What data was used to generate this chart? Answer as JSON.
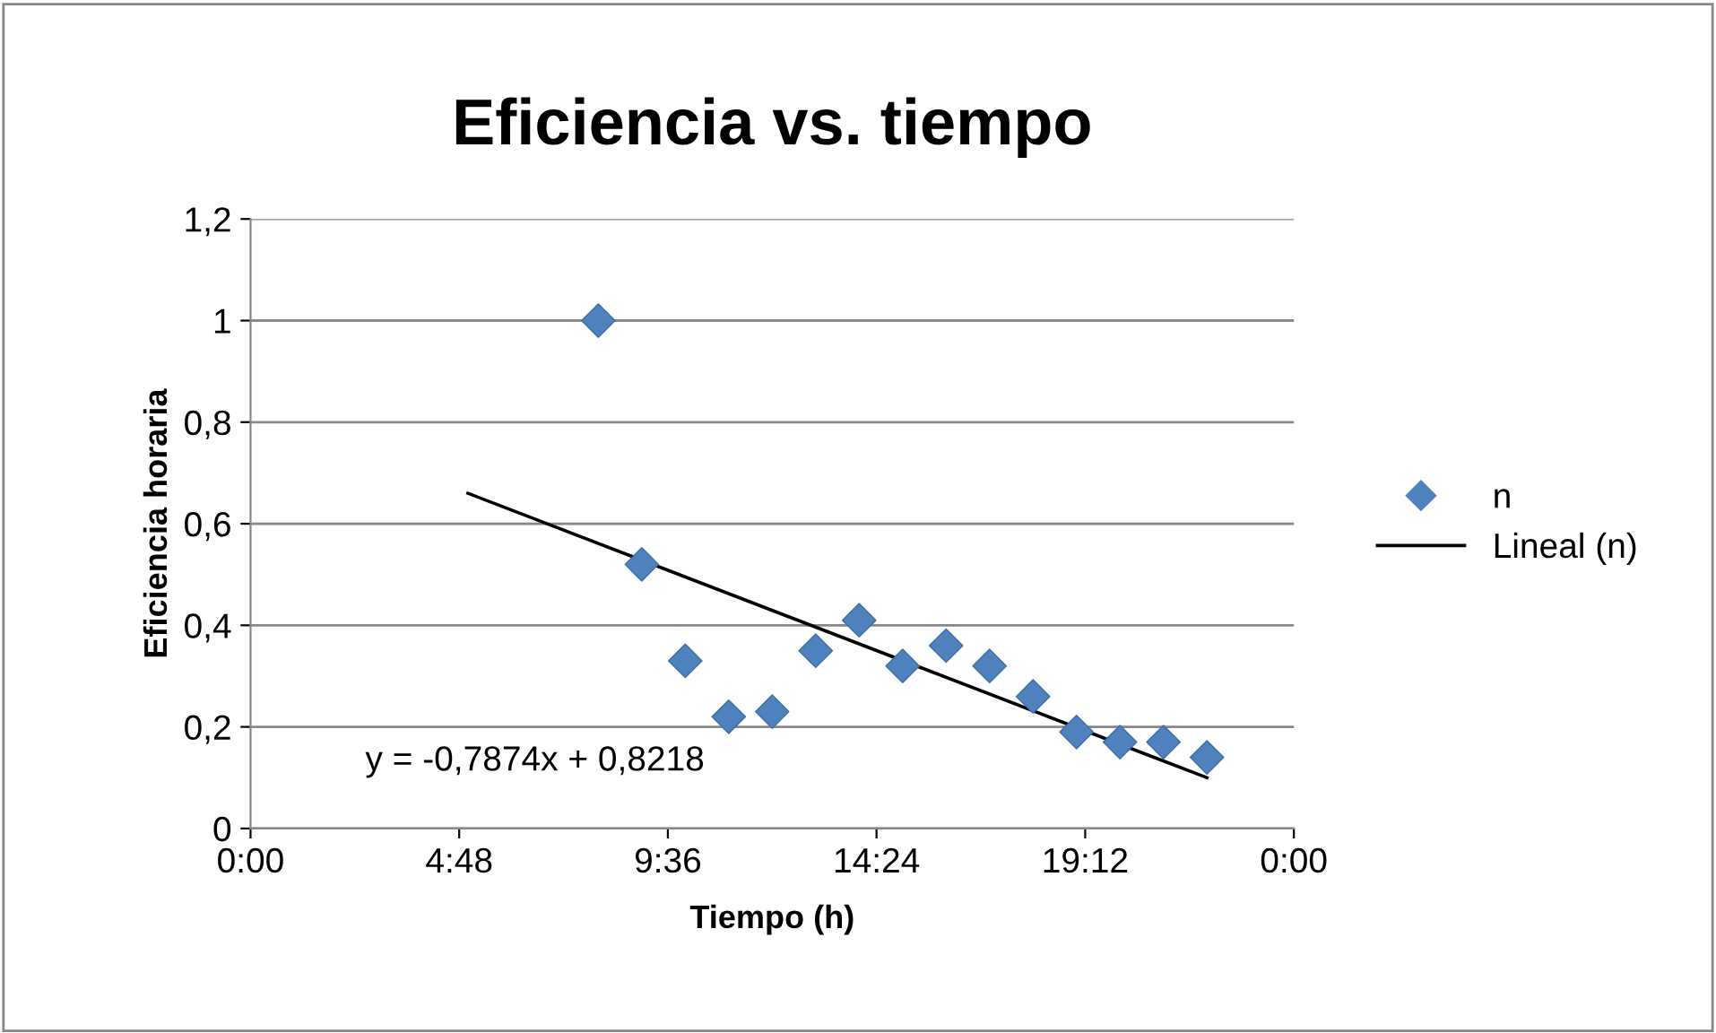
{
  "chart_data": {
    "type": "scatter",
    "title": "Eficiencia vs. tiempo",
    "xlabel": "Tiempo (h)",
    "ylabel": "Eficiencia horaria",
    "series": [
      {
        "name": "n",
        "marker": "diamond",
        "color": "#4f81bd",
        "x": [
          8,
          9,
          10,
          11,
          12,
          13,
          14,
          15,
          16,
          17,
          18,
          19,
          20,
          21,
          22
        ],
        "values": [
          1.0,
          0.52,
          0.33,
          0.22,
          0.23,
          0.35,
          0.41,
          0.32,
          0.36,
          0.32,
          0.26,
          0.19,
          0.17,
          0.17,
          0.14
        ]
      },
      {
        "name": "Lineal (n)",
        "type": "line",
        "marker": "none",
        "color": "#000000",
        "x": [
          5,
          22
        ],
        "values": [
          0.66,
          0.1
        ]
      }
    ],
    "xlim": [
      0,
      24
    ],
    "xticks": [
      {
        "value": 0,
        "label": "0:00"
      },
      {
        "value": 4.8,
        "label": "4:48"
      },
      {
        "value": 9.6,
        "label": "9:36"
      },
      {
        "value": 14.4,
        "label": "14:24"
      },
      {
        "value": 19.2,
        "label": "19:12"
      },
      {
        "value": 24,
        "label": "0:00"
      }
    ],
    "ylim": [
      0,
      1.2
    ],
    "yticks": [
      0,
      {
        "value": 0.2,
        "label": "0,2"
      },
      {
        "value": 0.4,
        "label": "0,4"
      },
      {
        "value": 0.6,
        "label": "0,6"
      },
      {
        "value": 0.8,
        "label": "0,8"
      },
      1,
      {
        "value": 1.2,
        "label": "1,2"
      }
    ],
    "grid": "y",
    "legend": "right",
    "annotations": [
      "y = -0,7874x + 0,8218"
    ]
  }
}
